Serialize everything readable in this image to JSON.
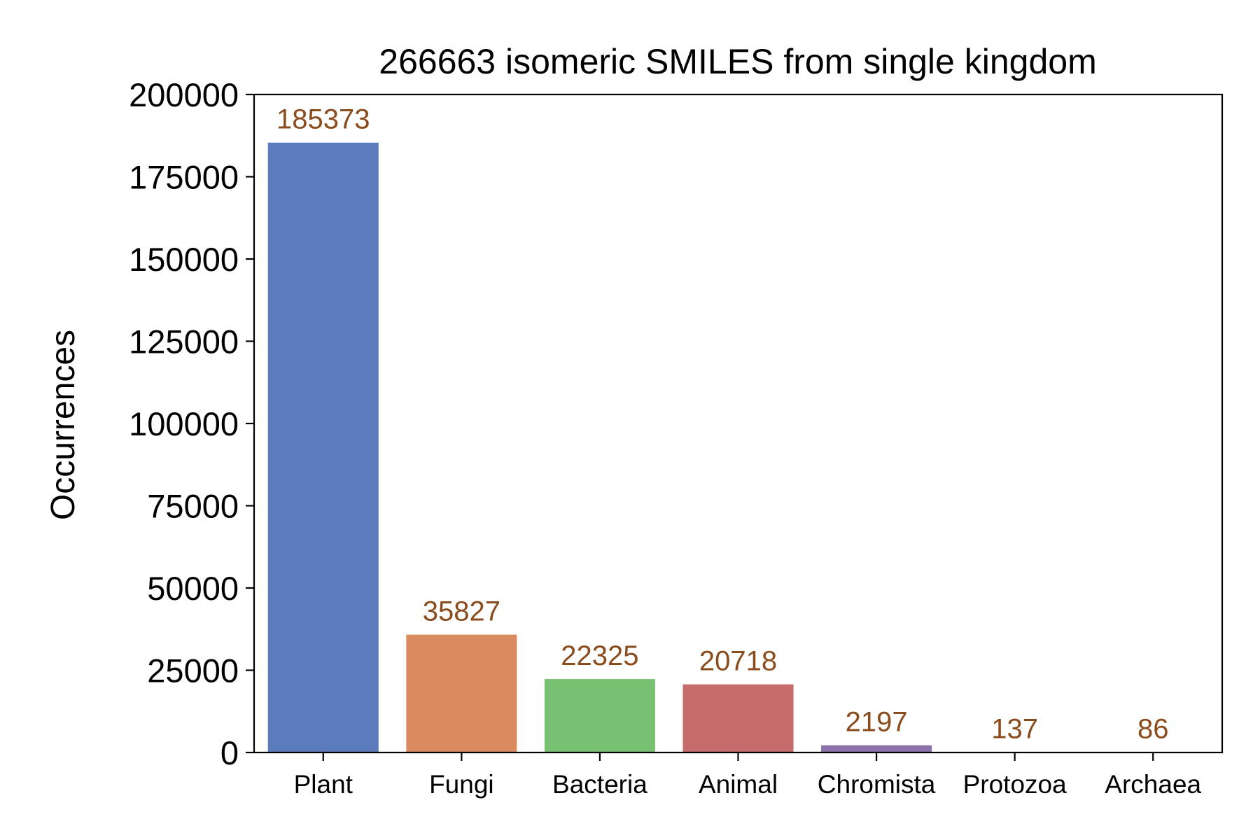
{
  "chart_data": {
    "type": "bar",
    "title": "266663 isomeric SMILES from single kingdom",
    "xlabel": "",
    "ylabel": "Occurrences",
    "categories": [
      "Plant",
      "Fungi",
      "Bacteria",
      "Animal",
      "Chromista",
      "Protozoa",
      "Archaea"
    ],
    "values": [
      185373,
      35827,
      22325,
      20718,
      2197,
      137,
      86
    ],
    "data_labels": [
      "185373",
      "35827",
      "22325",
      "20718",
      "2197",
      "137",
      "86"
    ],
    "colors": [
      "#5b7bbd",
      "#d98b5f",
      "#78c072",
      "#c66c6c",
      "#8c72ab",
      "#8e6a58",
      "#d88fc4"
    ],
    "label_color": "#8b4c1d",
    "ylim": [
      0,
      200000
    ],
    "yticks": [
      0,
      25000,
      50000,
      75000,
      100000,
      125000,
      150000,
      175000,
      200000
    ],
    "ytick_labels": [
      "0",
      "25000",
      "50000",
      "75000",
      "100000",
      "125000",
      "150000",
      "175000",
      "200000"
    ],
    "grid": false,
    "legend": "none"
  }
}
